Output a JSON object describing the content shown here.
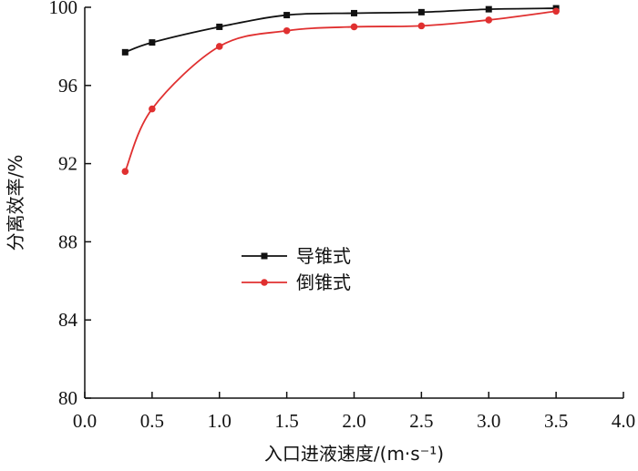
{
  "chart_data": {
    "type": "line",
    "xlabel": "入口进液速度/(m·s⁻¹)",
    "ylabel": "分离效率/%",
    "xlim": [
      0.0,
      4.0
    ],
    "ylim": [
      80,
      100
    ],
    "xticks": [
      "0.0",
      "0.5",
      "1.0",
      "1.5",
      "2.0",
      "2.5",
      "3.0",
      "3.5",
      "4.0"
    ],
    "yticks": [
      "80",
      "84",
      "88",
      "92",
      "96",
      "100"
    ],
    "grid": false,
    "legend_position": "center-left",
    "series": [
      {
        "name": "导锥式",
        "color": "#111111",
        "marker": "square",
        "x": [
          0.3,
          0.5,
          1.0,
          1.5,
          2.0,
          2.5,
          3.0,
          3.5
        ],
        "y": [
          97.7,
          98.2,
          99.0,
          99.6,
          99.7,
          99.75,
          99.9,
          99.95
        ]
      },
      {
        "name": "倒锥式",
        "color": "#e03030",
        "marker": "circle",
        "x": [
          0.3,
          0.5,
          1.0,
          1.5,
          2.0,
          2.5,
          3.0,
          3.5
        ],
        "y": [
          91.6,
          94.8,
          98.0,
          98.8,
          99.0,
          99.05,
          99.35,
          99.8
        ]
      }
    ]
  }
}
